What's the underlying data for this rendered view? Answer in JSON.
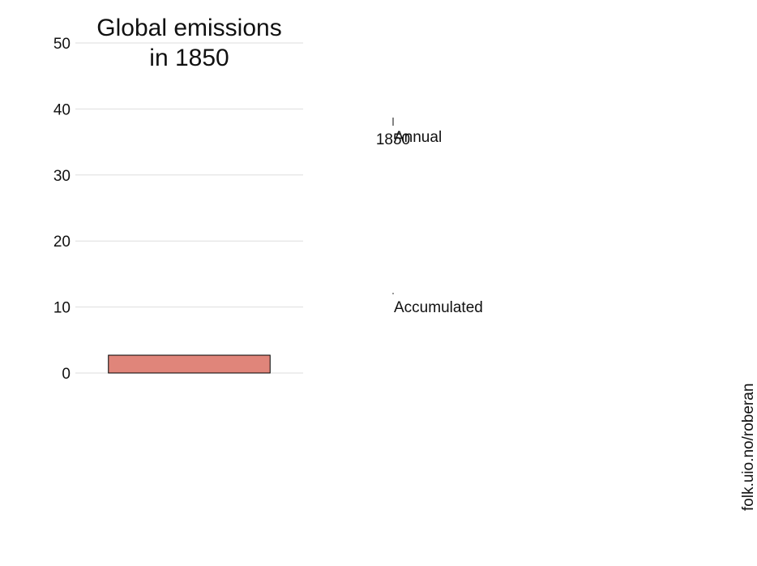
{
  "chart_data": {
    "type": "bar",
    "title_lines": [
      "Global emissions",
      "in 1850"
    ],
    "categories": [
      ""
    ],
    "values": [
      2.7
    ],
    "bar_color": "#e0857a",
    "bar_edge_color": "#000000",
    "ylim": [
      0,
      50
    ],
    "yticks": [
      0,
      10,
      20,
      30,
      40,
      50
    ],
    "grid": true,
    "timeline": {
      "year_label": "1850",
      "annual_label": "Annual",
      "accumulated_label": "Accumulated"
    }
  },
  "credit": "folk.uio.no/roberan"
}
